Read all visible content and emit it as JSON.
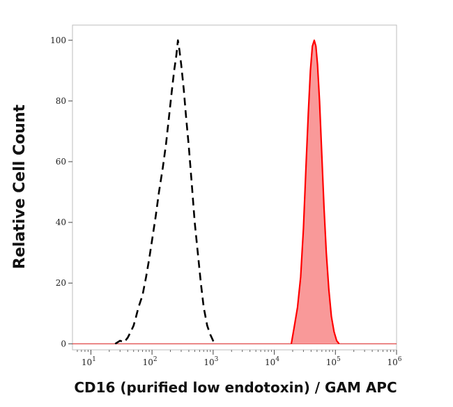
{
  "chart_data": {
    "type": "area",
    "title": "",
    "xlabel": "CD16 (purified low endotoxin) / GAM APC",
    "ylabel": "Relative Cell Count",
    "x_scale": "log",
    "xlim": [
      5,
      1000000
    ],
    "ylim": [
      -2,
      105
    ],
    "x_ticks": [
      {
        "base": "10",
        "exp": "1",
        "value": 10
      },
      {
        "base": "10",
        "exp": "2",
        "value": 100
      },
      {
        "base": "10",
        "exp": "3",
        "value": 1000
      },
      {
        "base": "10",
        "exp": "4",
        "value": 10000
      },
      {
        "base": "10",
        "exp": "5",
        "value": 100000
      },
      {
        "base": "10",
        "exp": "6",
        "value": 1000000
      }
    ],
    "y_ticks": [
      {
        "label": "0",
        "value": 0
      },
      {
        "label": "20",
        "value": 20
      },
      {
        "label": "40",
        "value": 40
      },
      {
        "label": "60",
        "value": 60
      },
      {
        "label": "80",
        "value": 80
      },
      {
        "label": "100",
        "value": 100
      }
    ],
    "grid": false,
    "legend": "none",
    "series": [
      {
        "style": "dashed",
        "color": "#000000",
        "fill": "none",
        "points": [
          [
            25,
            0
          ],
          [
            30,
            1
          ],
          [
            35,
            0.5
          ],
          [
            40,
            2
          ],
          [
            45,
            4
          ],
          [
            50,
            6
          ],
          [
            55,
            9
          ],
          [
            60,
            12
          ],
          [
            70,
            16
          ],
          [
            80,
            22
          ],
          [
            90,
            28
          ],
          [
            100,
            34
          ],
          [
            115,
            42
          ],
          [
            130,
            50
          ],
          [
            150,
            58
          ],
          [
            170,
            66
          ],
          [
            190,
            75
          ],
          [
            210,
            83
          ],
          [
            230,
            90
          ],
          [
            250,
            95
          ],
          [
            265,
            100
          ],
          [
            280,
            97
          ],
          [
            300,
            92
          ],
          [
            330,
            84
          ],
          [
            360,
            75
          ],
          [
            400,
            65
          ],
          [
            450,
            52
          ],
          [
            500,
            40
          ],
          [
            560,
            30
          ],
          [
            630,
            20
          ],
          [
            700,
            12
          ],
          [
            800,
            6
          ],
          [
            900,
            3
          ],
          [
            1000,
            1
          ],
          [
            1150,
            0
          ]
        ]
      },
      {
        "style": "filled",
        "color": "#ff0000",
        "fill": "#f99999",
        "points": [
          [
            19000,
            0
          ],
          [
            21000,
            5
          ],
          [
            24000,
            12
          ],
          [
            27000,
            22
          ],
          [
            30000,
            38
          ],
          [
            33000,
            58
          ],
          [
            36000,
            76
          ],
          [
            39000,
            90
          ],
          [
            42000,
            98
          ],
          [
            45000,
            100
          ],
          [
            48000,
            98
          ],
          [
            51000,
            92
          ],
          [
            55000,
            80
          ],
          [
            60000,
            62
          ],
          [
            65000,
            45
          ],
          [
            71000,
            30
          ],
          [
            78000,
            18
          ],
          [
            86000,
            9
          ],
          [
            95000,
            4
          ],
          [
            105000,
            1
          ],
          [
            115000,
            0
          ]
        ]
      }
    ]
  }
}
